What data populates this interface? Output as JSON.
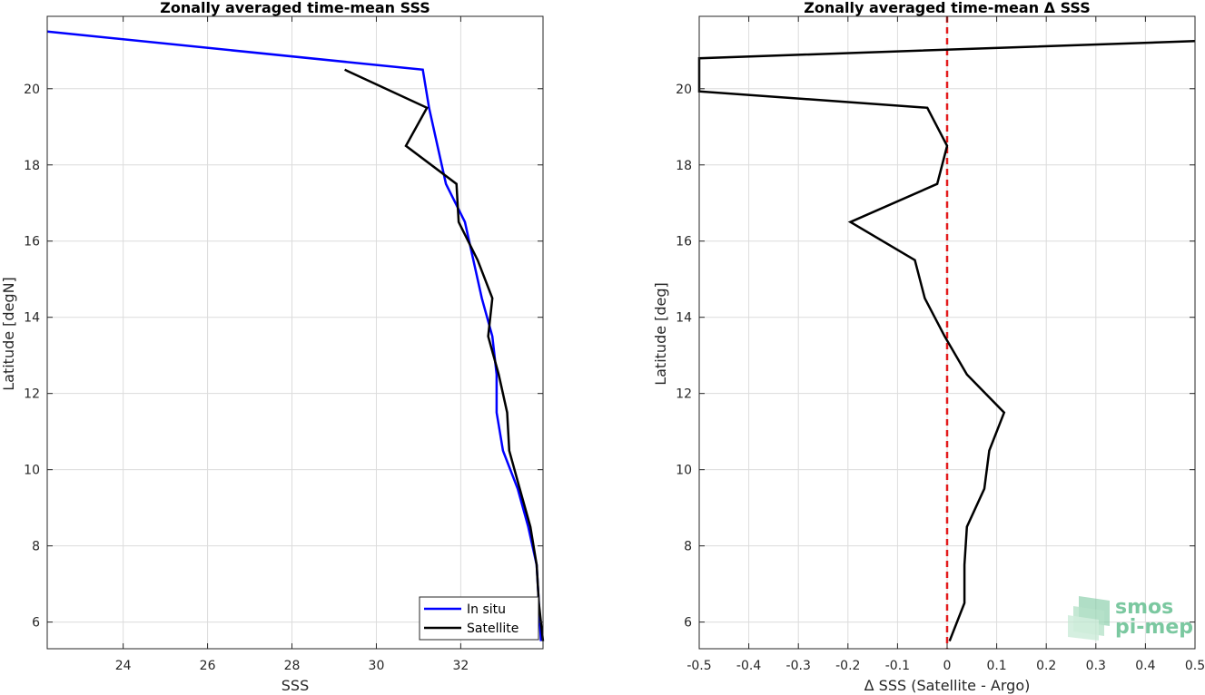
{
  "chart_data": [
    {
      "type": "line",
      "title": "Zonally averaged time-mean SSS",
      "xlabel": "SSS",
      "ylabel": "Latitude [degN]",
      "xlim": [
        22.2,
        33.95
      ],
      "ylim": [
        5.3,
        21.9
      ],
      "xticks": [
        24,
        26,
        28,
        30,
        32
      ],
      "yticks": [
        6,
        8,
        10,
        12,
        14,
        16,
        18,
        20
      ],
      "grid": true,
      "legend_position": "bottom-right",
      "series": [
        {
          "name": "In situ",
          "color": "#0000ff",
          "x": [
            33.9,
            33.85,
            33.8,
            33.6,
            33.35,
            33.0,
            32.85,
            32.85,
            32.75,
            32.5,
            32.1,
            31.65,
            31.45,
            31.25,
            31.1,
            22.2
          ],
          "y": [
            5.5,
            6.5,
            7.5,
            8.5,
            9.5,
            10.5,
            11.5,
            12.5,
            13.5,
            14.5,
            16.5,
            17.5,
            18.5,
            19.5,
            20.5,
            21.5
          ]
        },
        {
          "name": "Satellite",
          "color": "#000000",
          "x": [
            33.95,
            33.85,
            33.8,
            33.65,
            33.4,
            33.15,
            33.1,
            32.9,
            32.65,
            32.75,
            32.4,
            31.95,
            31.9,
            30.7,
            31.2,
            29.25
          ],
          "y": [
            5.5,
            6.5,
            7.5,
            8.5,
            9.5,
            10.5,
            11.5,
            12.5,
            13.5,
            14.5,
            15.5,
            16.5,
            17.5,
            18.5,
            19.5,
            20.5
          ]
        }
      ]
    },
    {
      "type": "line",
      "title": "Zonally averaged time-mean Δ SSS",
      "xlabel": "Δ SSS (Satellite - Argo)",
      "ylabel": "Latitude [deg]",
      "xlim": [
        -0.5,
        0.5
      ],
      "ylim": [
        5.3,
        21.9
      ],
      "xticks": [
        -0.5,
        -0.4,
        -0.3,
        -0.2,
        -0.1,
        0,
        0.1,
        0.2,
        0.3,
        0.4,
        0.5
      ],
      "xtick_labels": [
        "-0.5",
        "-0.4",
        "-0.3",
        "-0.2",
        "-0.1",
        "0",
        "0.1",
        "0.2",
        "0.3",
        "0.4",
        "0.5"
      ],
      "yticks": [
        6,
        8,
        10,
        12,
        14,
        16,
        18,
        20
      ],
      "grid": true,
      "reference_line": {
        "x": 0,
        "color": "#e31a1c",
        "style": "dashed"
      },
      "series": [
        {
          "color": "#000000",
          "x": [
            0.005,
            0.035,
            0.035,
            0.04,
            0.075,
            0.085,
            0.115,
            0.04,
            -0.005,
            -0.045,
            -0.065,
            -0.195,
            -0.02,
            0.0,
            -0.04,
            -0.5,
            -0.5,
            0.5
          ],
          "y": [
            5.5,
            6.5,
            7.5,
            8.5,
            9.5,
            10.5,
            11.5,
            12.5,
            13.5,
            14.5,
            15.5,
            16.5,
            17.5,
            18.5,
            19.5,
            19.93,
            20.8,
            21.25
          ]
        }
      ]
    }
  ],
  "logo": {
    "line1": "smos",
    "line2": "pi-mep",
    "color": "#7bc8a0"
  }
}
